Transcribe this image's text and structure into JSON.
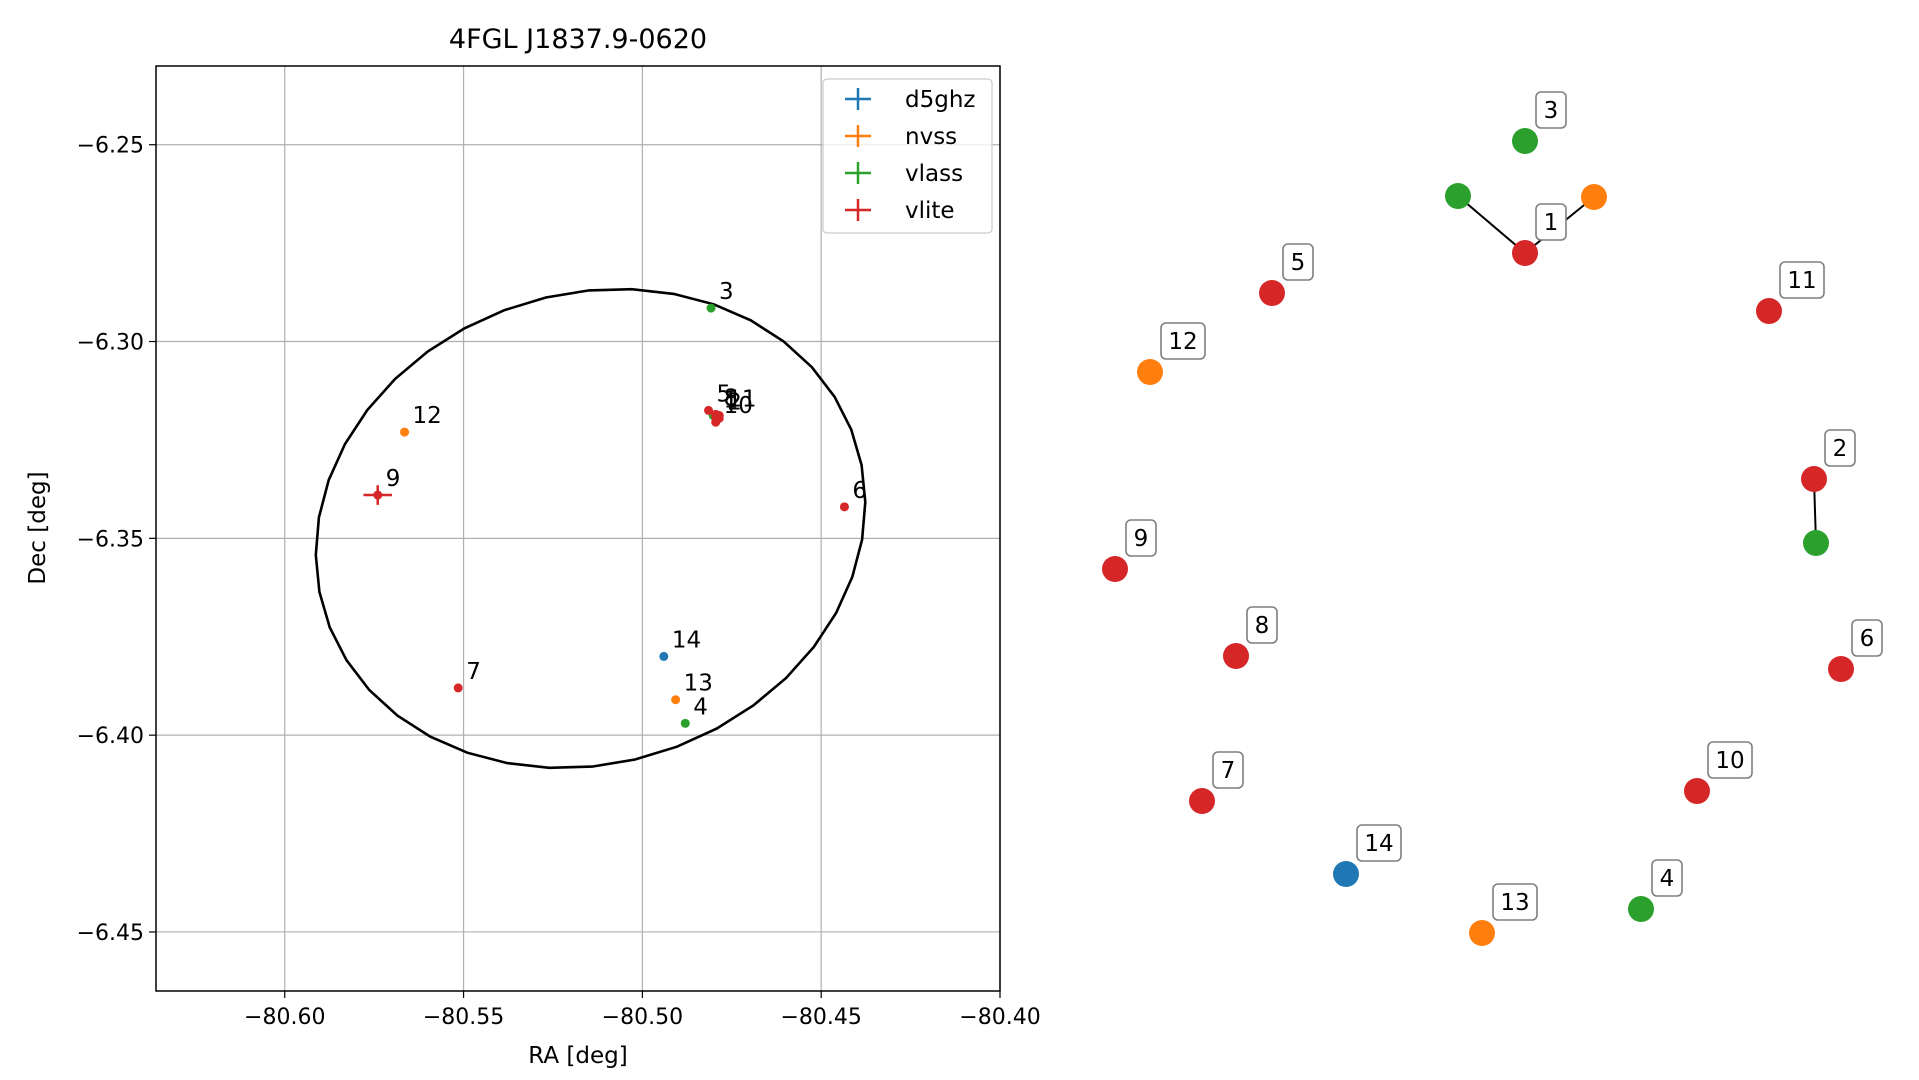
{
  "chart_data": [
    {
      "type": "scatter",
      "title": "4FGL J1837.9-0620",
      "xlabel": "RA [deg]",
      "ylabel": "Dec [deg]",
      "xlim": [
        -80.636,
        -80.4
      ],
      "ylim": [
        -6.465,
        -6.23
      ],
      "xticks": [
        -80.6,
        -80.55,
        -80.5,
        -80.45,
        -80.4
      ],
      "xtick_labels": [
        "−80.60",
        "−80.55",
        "−80.50",
        "−80.45",
        "−80.40"
      ],
      "yticks": [
        -6.25,
        -6.3,
        -6.35,
        -6.4,
        -6.45
      ],
      "ytick_labels": [
        "−6.25",
        "−6.30",
        "−6.35",
        "−6.40",
        "−6.45"
      ],
      "grid": true,
      "legend_position": "top-right",
      "ellipse": {
        "center_ra": -80.5145,
        "center_dec": -6.3475,
        "semi_major": 0.0775,
        "semi_minor": 0.06,
        "angle_deg": 12
      },
      "series": [
        {
          "name": "d5ghz",
          "color": "#1f77b4",
          "points": [
            {
              "label": "14",
              "ra": -80.494,
              "dec": -6.38,
              "err_ra": 0,
              "err_dec": 0
            }
          ]
        },
        {
          "name": "nvss",
          "color": "#ff7f0e",
          "points": [
            {
              "label": "12",
              "ra": -80.5665,
              "dec": -6.323,
              "err_ra": 0,
              "err_dec": 0
            },
            {
              "label": "13",
              "ra": -80.4907,
              "dec": -6.391,
              "err_ra": 0,
              "err_dec": 0
            },
            {
              "label": "",
              "ra": -80.4788,
              "dec": -6.3196,
              "err_ra": 0,
              "err_dec": 0
            }
          ]
        },
        {
          "name": "vlass",
          "color": "#2ca02c",
          "points": [
            {
              "label": "3",
              "ra": -80.4808,
              "dec": -6.2915,
              "err_ra": 0,
              "err_dec": 0
            },
            {
              "label": "4",
              "ra": -80.488,
              "dec": -6.397,
              "err_ra": 0,
              "err_dec": 0
            },
            {
              "label": "",
              "ra": -80.4802,
              "dec": -6.3188,
              "err_ra": 0,
              "err_dec": 0
            }
          ]
        },
        {
          "name": "vlite",
          "color": "#d62728",
          "points": [
            {
              "label": "5",
              "ra": -80.4815,
              "dec": -6.3175,
              "err_ra": 0,
              "err_dec": 0
            },
            {
              "label": "1",
              "ra": -80.4795,
              "dec": -6.319,
              "err_ra": 0,
              "err_dec": 0
            },
            {
              "label": "2",
              "ra": -80.4785,
              "dec": -6.3195,
              "err_ra": 0,
              "err_dec": 0
            },
            {
              "label": "8",
              "ra": -80.4795,
              "dec": -6.3185,
              "err_ra": 0,
              "err_dec": 0
            },
            {
              "label": "11",
              "ra": -80.4785,
              "dec": -6.3188,
              "err_ra": 0,
              "err_dec": 0
            },
            {
              "label": "10",
              "ra": -80.4795,
              "dec": -6.3205,
              "err_ra": 0,
              "err_dec": 0
            },
            {
              "label": "6",
              "ra": -80.4435,
              "dec": -6.342,
              "err_ra": 0,
              "err_dec": 0
            },
            {
              "label": "9",
              "ra": -80.574,
              "dec": -6.339,
              "err_ra": 0.004,
              "err_dec": 0.0025
            },
            {
              "label": "7",
              "ra": -80.5515,
              "dec": -6.388,
              "err_ra": 0,
              "err_dec": 0
            }
          ]
        }
      ]
    },
    {
      "type": "diagram",
      "nodes": [
        {
          "id": "vlass-1",
          "label": "",
          "catalog": "vlass",
          "color": "#2ca02c"
        },
        {
          "id": "vlite-1",
          "label": "1",
          "catalog": "vlite",
          "color": "#d62728"
        },
        {
          "id": "nvss-1",
          "label": "",
          "catalog": "nvss",
          "color": "#ff7f0e"
        },
        {
          "id": "vlass-3",
          "label": "3",
          "catalog": "vlass",
          "color": "#2ca02c"
        },
        {
          "id": "vlite-5",
          "label": "5",
          "catalog": "vlite",
          "color": "#d62728"
        },
        {
          "id": "vlite-11",
          "label": "11",
          "catalog": "vlite",
          "color": "#d62728"
        },
        {
          "id": "nvss-12",
          "label": "12",
          "catalog": "nvss",
          "color": "#ff7f0e"
        },
        {
          "id": "vlite-2",
          "label": "2",
          "catalog": "vlite",
          "color": "#d62728"
        },
        {
          "id": "vlass-2",
          "label": "",
          "catalog": "vlass",
          "color": "#2ca02c"
        },
        {
          "id": "vlite-9",
          "label": "9",
          "catalog": "vlite",
          "color": "#d62728"
        },
        {
          "id": "vlite-8",
          "label": "8",
          "catalog": "vlite",
          "color": "#d62728"
        },
        {
          "id": "vlite-6",
          "label": "6",
          "catalog": "vlite",
          "color": "#d62728"
        },
        {
          "id": "vlite-7",
          "label": "7",
          "catalog": "vlite",
          "color": "#d62728"
        },
        {
          "id": "vlite-10",
          "label": "10",
          "catalog": "vlite",
          "color": "#d62728"
        },
        {
          "id": "d5ghz-14",
          "label": "14",
          "catalog": "d5ghz",
          "color": "#1f77b4"
        },
        {
          "id": "nvss-13",
          "label": "13",
          "catalog": "nvss",
          "color": "#ff7f0e"
        },
        {
          "id": "vlass-4",
          "label": "4",
          "catalog": "vlass",
          "color": "#2ca02c"
        }
      ],
      "edges": [
        {
          "from": "vlass-1",
          "to": "vlite-1"
        },
        {
          "from": "nvss-1",
          "to": "vlite-1"
        },
        {
          "from": "vlite-2",
          "to": "vlass-2"
        }
      ]
    }
  ]
}
